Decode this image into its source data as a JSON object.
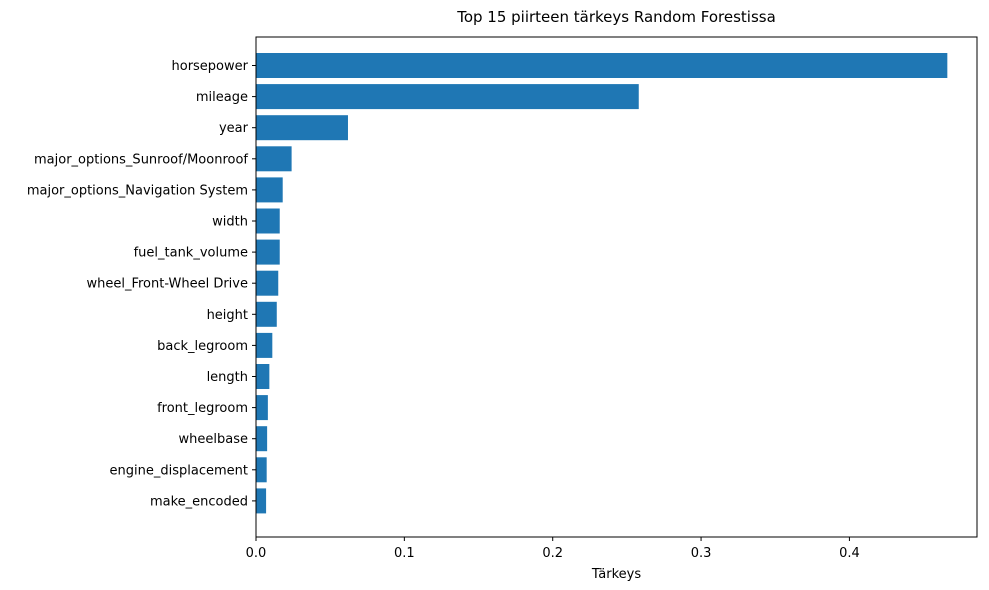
{
  "chart_data": {
    "type": "bar",
    "orientation": "horizontal",
    "title": "Top 15 piirteen tärkeys Random Forestissa",
    "xlabel": "Tärkeys",
    "ylabel": "",
    "xlim": [
      0,
      0.486
    ],
    "xticks": [
      0.0,
      0.1,
      0.2,
      0.3,
      0.4
    ],
    "xtick_labels": [
      "0.0",
      "0.1",
      "0.2",
      "0.3",
      "0.4"
    ],
    "bar_color": "#1f77b4",
    "grid": false,
    "categories": [
      "horsepower",
      "mileage",
      "year",
      "major_options_Sunroof/Moonroof",
      "major_options_Navigation System",
      "width",
      "fuel_tank_volume",
      "wheel_Front-Wheel Drive",
      "height",
      "back_legroom",
      "length",
      "front_legroom",
      "wheelbase",
      "engine_displacement",
      "make_encoded"
    ],
    "values": [
      0.466,
      0.258,
      0.062,
      0.024,
      0.018,
      0.016,
      0.016,
      0.015,
      0.014,
      0.011,
      0.009,
      0.008,
      0.0075,
      0.0072,
      0.0068
    ]
  }
}
